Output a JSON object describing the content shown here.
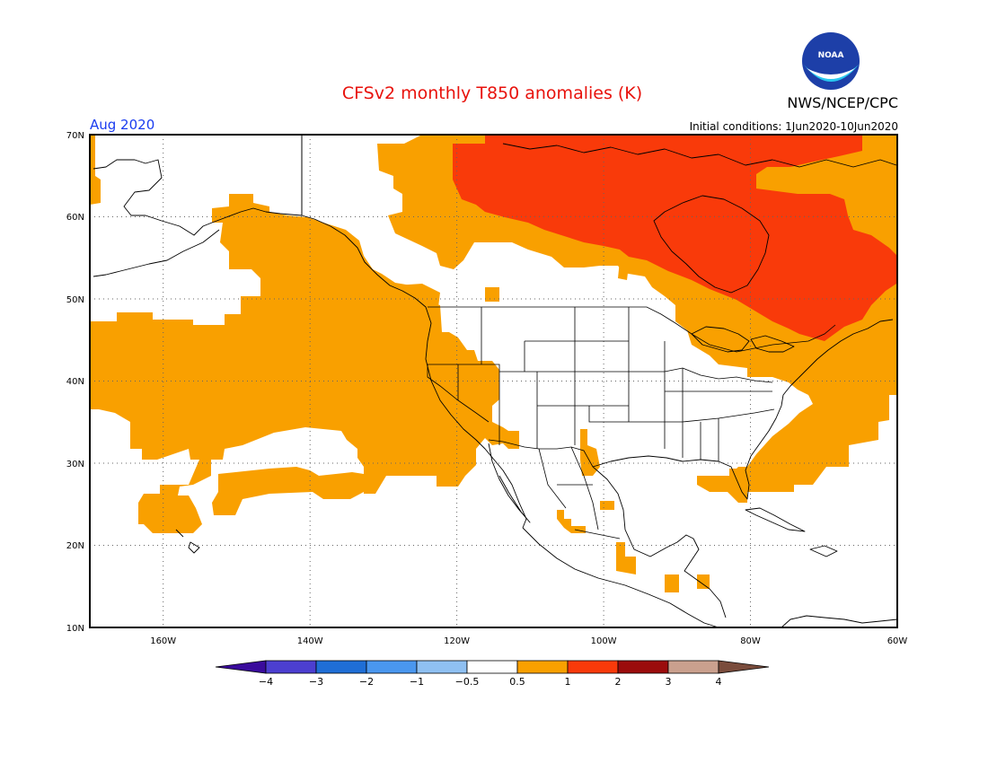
{
  "header": {
    "title": "CFSv2 monthly T850 anomalies (K)",
    "agency": "NWS/NCEP/CPC",
    "logo_text": "NOAA",
    "valid_month": "Aug 2020",
    "initial_conditions": "Initial conditions: 1Jun2020-10Jun2020"
  },
  "map": {
    "region": "North America and Eastern Pacific",
    "lon_range": [
      -170,
      -60
    ],
    "lat_range": [
      10,
      70
    ],
    "lon_ticks": [
      "160W",
      "140W",
      "120W",
      "100W",
      "80W",
      "60W"
    ],
    "lat_ticks": [
      "70N",
      "60N",
      "50N",
      "40N",
      "30N",
      "20N",
      "10N"
    ],
    "colors": {
      "anom_0_5_to_1": "#f9a000",
      "anom_1_to_2": "#f93a0a",
      "land_border": "#000000"
    }
  },
  "colorbar": {
    "tick_labels": [
      "-4",
      "-3",
      "-2",
      "-1",
      "-0.5",
      "0.5",
      "1",
      "2",
      "3",
      "4"
    ],
    "colors": [
      "#3a0b9c",
      "#4c3fd0",
      "#1f6ed6",
      "#4a97ef",
      "#8fc0f2",
      "#ffffff",
      "#f9a000",
      "#f93a0a",
      "#9b0c0c",
      "#caa08e",
      "#7a4c3c"
    ]
  }
}
